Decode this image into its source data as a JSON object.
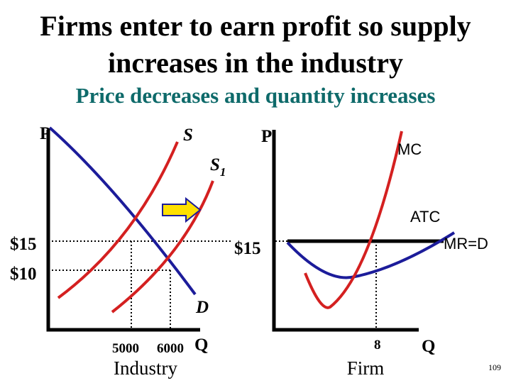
{
  "title": {
    "line1": "Firms enter to earn profit so supply",
    "line2": "increases in the industry"
  },
  "subtitle": "Price decreases and quantity increases",
  "industry": {
    "price_axis": "P",
    "supply": "S",
    "supply_new": "S",
    "supply_new_subscript": "1",
    "demand": "D",
    "price_high": "$15",
    "price_low": "$10",
    "quantity_low": "5000",
    "quantity_high": "6000",
    "quantity_axis": "Q",
    "label": "Industry"
  },
  "firm": {
    "price_axis": "P",
    "mc": "MC",
    "atc": "ATC",
    "mr": "MR=D",
    "price": "$15",
    "quantity": "8",
    "quantity_axis": "Q",
    "label": "Firm"
  },
  "page_number": "109"
}
